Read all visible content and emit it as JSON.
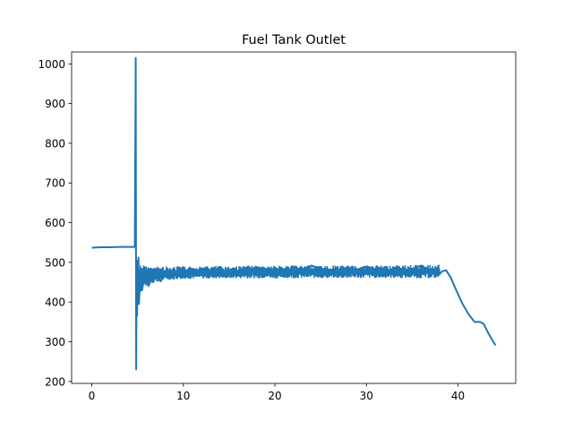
{
  "chart_data": {
    "type": "line",
    "title": "Fuel Tank Outlet",
    "xlabel": "",
    "ylabel": "",
    "xlim": [
      -2.2,
      46.3
    ],
    "ylim": [
      195,
      1030
    ],
    "xticks": [
      0,
      10,
      20,
      30,
      40
    ],
    "yticks": [
      200,
      300,
      400,
      500,
      600,
      700,
      800,
      900,
      1000
    ],
    "grid": false,
    "legend": "none",
    "color": "#1f77b4",
    "series": [
      {
        "points": [
          [
            0.0,
            537
          ],
          [
            1.0,
            538
          ],
          [
            2.0,
            538
          ],
          [
            3.0,
            539
          ],
          [
            4.0,
            539
          ],
          [
            4.7,
            539
          ],
          [
            4.8,
            1015
          ],
          [
            4.85,
            230
          ],
          [
            4.9,
            505
          ],
          [
            4.95,
            365
          ],
          [
            5.0,
            490
          ],
          [
            5.05,
            420
          ],
          [
            5.1,
            512
          ],
          [
            5.15,
            395
          ],
          [
            5.3,
            470
          ],
          [
            5.5,
            430
          ],
          [
            5.8,
            480
          ],
          [
            6.2,
            440
          ],
          [
            6.8,
            482
          ],
          [
            7.5,
            452
          ],
          [
            8.5,
            480
          ],
          [
            10,
            462
          ],
          [
            12,
            485
          ],
          [
            15,
            465
          ],
          [
            18,
            488
          ],
          [
            21,
            464
          ],
          [
            24,
            492
          ],
          [
            27,
            466
          ],
          [
            30,
            490
          ],
          [
            33,
            468
          ],
          [
            36,
            492
          ],
          [
            37.8,
            466
          ],
          [
            38.3,
            478
          ],
          [
            38.7,
            480
          ],
          [
            39.2,
            462
          ],
          [
            39.8,
            430
          ],
          [
            40.5,
            395
          ],
          [
            41.2,
            368
          ],
          [
            41.8,
            350
          ],
          [
            42.4,
            350
          ],
          [
            42.8,
            345
          ],
          [
            43.3,
            322
          ],
          [
            43.8,
            302
          ],
          [
            44.1,
            291
          ]
        ],
        "noise_band": [
          [
            5.2,
            420,
            500
          ],
          [
            6.0,
            440,
            490
          ],
          [
            7.0,
            450,
            490
          ],
          [
            8.0,
            455,
            490
          ],
          [
            10.0,
            458,
            490
          ],
          [
            20.0,
            460,
            492
          ],
          [
            30.0,
            460,
            492
          ],
          [
            38.0,
            460,
            494
          ]
        ]
      }
    ]
  }
}
